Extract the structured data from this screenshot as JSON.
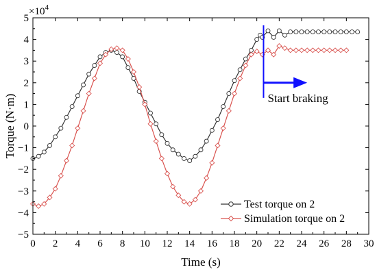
{
  "chart_data": {
    "type": "line",
    "xlabel": "Time (s)",
    "ylabel": "Torque (N·m)",
    "y_multiplier_label": "×10",
    "y_multiplier_exponent": "4",
    "xlim": [
      0,
      30
    ],
    "ylim": [
      -5,
      5
    ],
    "x_ticks": [
      0,
      2,
      4,
      6,
      8,
      10,
      12,
      14,
      16,
      18,
      20,
      22,
      24,
      26,
      28,
      30
    ],
    "y_ticks": [
      -5,
      -4,
      -3,
      -2,
      -1,
      0,
      1,
      2,
      3,
      4,
      5
    ],
    "grid": false,
    "legend_position": "bottom-right",
    "series": [
      {
        "name": "Test torque on 2",
        "color": "#333333",
        "marker": "circle",
        "x": [
          0,
          0.5,
          1,
          1.5,
          2,
          2.5,
          3,
          3.5,
          4,
          4.5,
          5,
          5.5,
          6,
          6.5,
          7,
          7.5,
          8,
          8.5,
          9,
          9.5,
          10,
          10.5,
          11,
          11.5,
          12,
          12.5,
          13,
          13.5,
          14,
          14.5,
          15,
          15.5,
          16,
          16.5,
          17,
          17.5,
          18,
          18.5,
          19,
          19.5,
          20,
          20.3,
          20.5,
          21,
          21.5,
          22,
          22.5,
          23,
          23.5,
          24,
          24.5,
          25,
          25.5,
          26,
          26.5,
          27,
          27.5,
          28,
          28.5,
          29
        ],
        "values": [
          -1.5,
          -1.4,
          -1.2,
          -0.9,
          -0.5,
          -0.1,
          0.4,
          0.9,
          1.4,
          1.9,
          2.4,
          2.8,
          3.2,
          3.4,
          3.5,
          3.4,
          3.2,
          2.7,
          2.2,
          1.6,
          1.1,
          0.6,
          0.1,
          -0.4,
          -0.8,
          -1.1,
          -1.3,
          -1.5,
          -1.6,
          -1.4,
          -1.1,
          -0.7,
          -0.2,
          0.3,
          0.9,
          1.5,
          2.1,
          2.6,
          3.1,
          3.5,
          4.0,
          4.2,
          4.1,
          4.4,
          4.1,
          4.4,
          4.2,
          4.35,
          4.35,
          4.35,
          4.35,
          4.35,
          4.35,
          4.35,
          4.35,
          4.35,
          4.35,
          4.35,
          4.35,
          4.35
        ]
      },
      {
        "name": "Simulation torque on 2",
        "color": "#d9534f",
        "marker": "diamond",
        "x": [
          0,
          0.5,
          1,
          1.5,
          2,
          2.5,
          3,
          3.5,
          4,
          4.5,
          5,
          5.5,
          6,
          6.5,
          7,
          7.5,
          8,
          8.5,
          9,
          9.5,
          10,
          10.5,
          11,
          11.5,
          12,
          12.5,
          13,
          13.5,
          14,
          14.5,
          15,
          15.5,
          16,
          16.5,
          17,
          17.5,
          18,
          18.5,
          19,
          19.5,
          20,
          20.5,
          21,
          21.5,
          22,
          22.5,
          23,
          23.5,
          24,
          24.5,
          25,
          25.5,
          26,
          26.5,
          27,
          27.5,
          28
        ],
        "values": [
          -3.6,
          -3.7,
          -3.6,
          -3.3,
          -2.9,
          -2.3,
          -1.6,
          -0.9,
          -0.1,
          0.7,
          1.5,
          2.2,
          2.9,
          3.3,
          3.55,
          3.6,
          3.5,
          3.1,
          2.5,
          1.8,
          1.0,
          0.1,
          -0.7,
          -1.5,
          -2.2,
          -2.8,
          -3.2,
          -3.5,
          -3.6,
          -3.4,
          -3.0,
          -2.4,
          -1.7,
          -0.9,
          -0.1,
          0.7,
          1.5,
          2.2,
          2.8,
          3.3,
          3.45,
          3.3,
          3.5,
          3.3,
          3.7,
          3.6,
          3.5,
          3.5,
          3.5,
          3.5,
          3.5,
          3.5,
          3.5,
          3.5,
          3.5,
          3.5,
          3.5
        ]
      }
    ],
    "annotation": {
      "text": "Start braking",
      "x": 20.6,
      "y_top": 4.65,
      "y_bottom": 1.3,
      "arrow_y": 2.0,
      "arrow_x_end": 24.5,
      "color": "#1010ff"
    }
  }
}
